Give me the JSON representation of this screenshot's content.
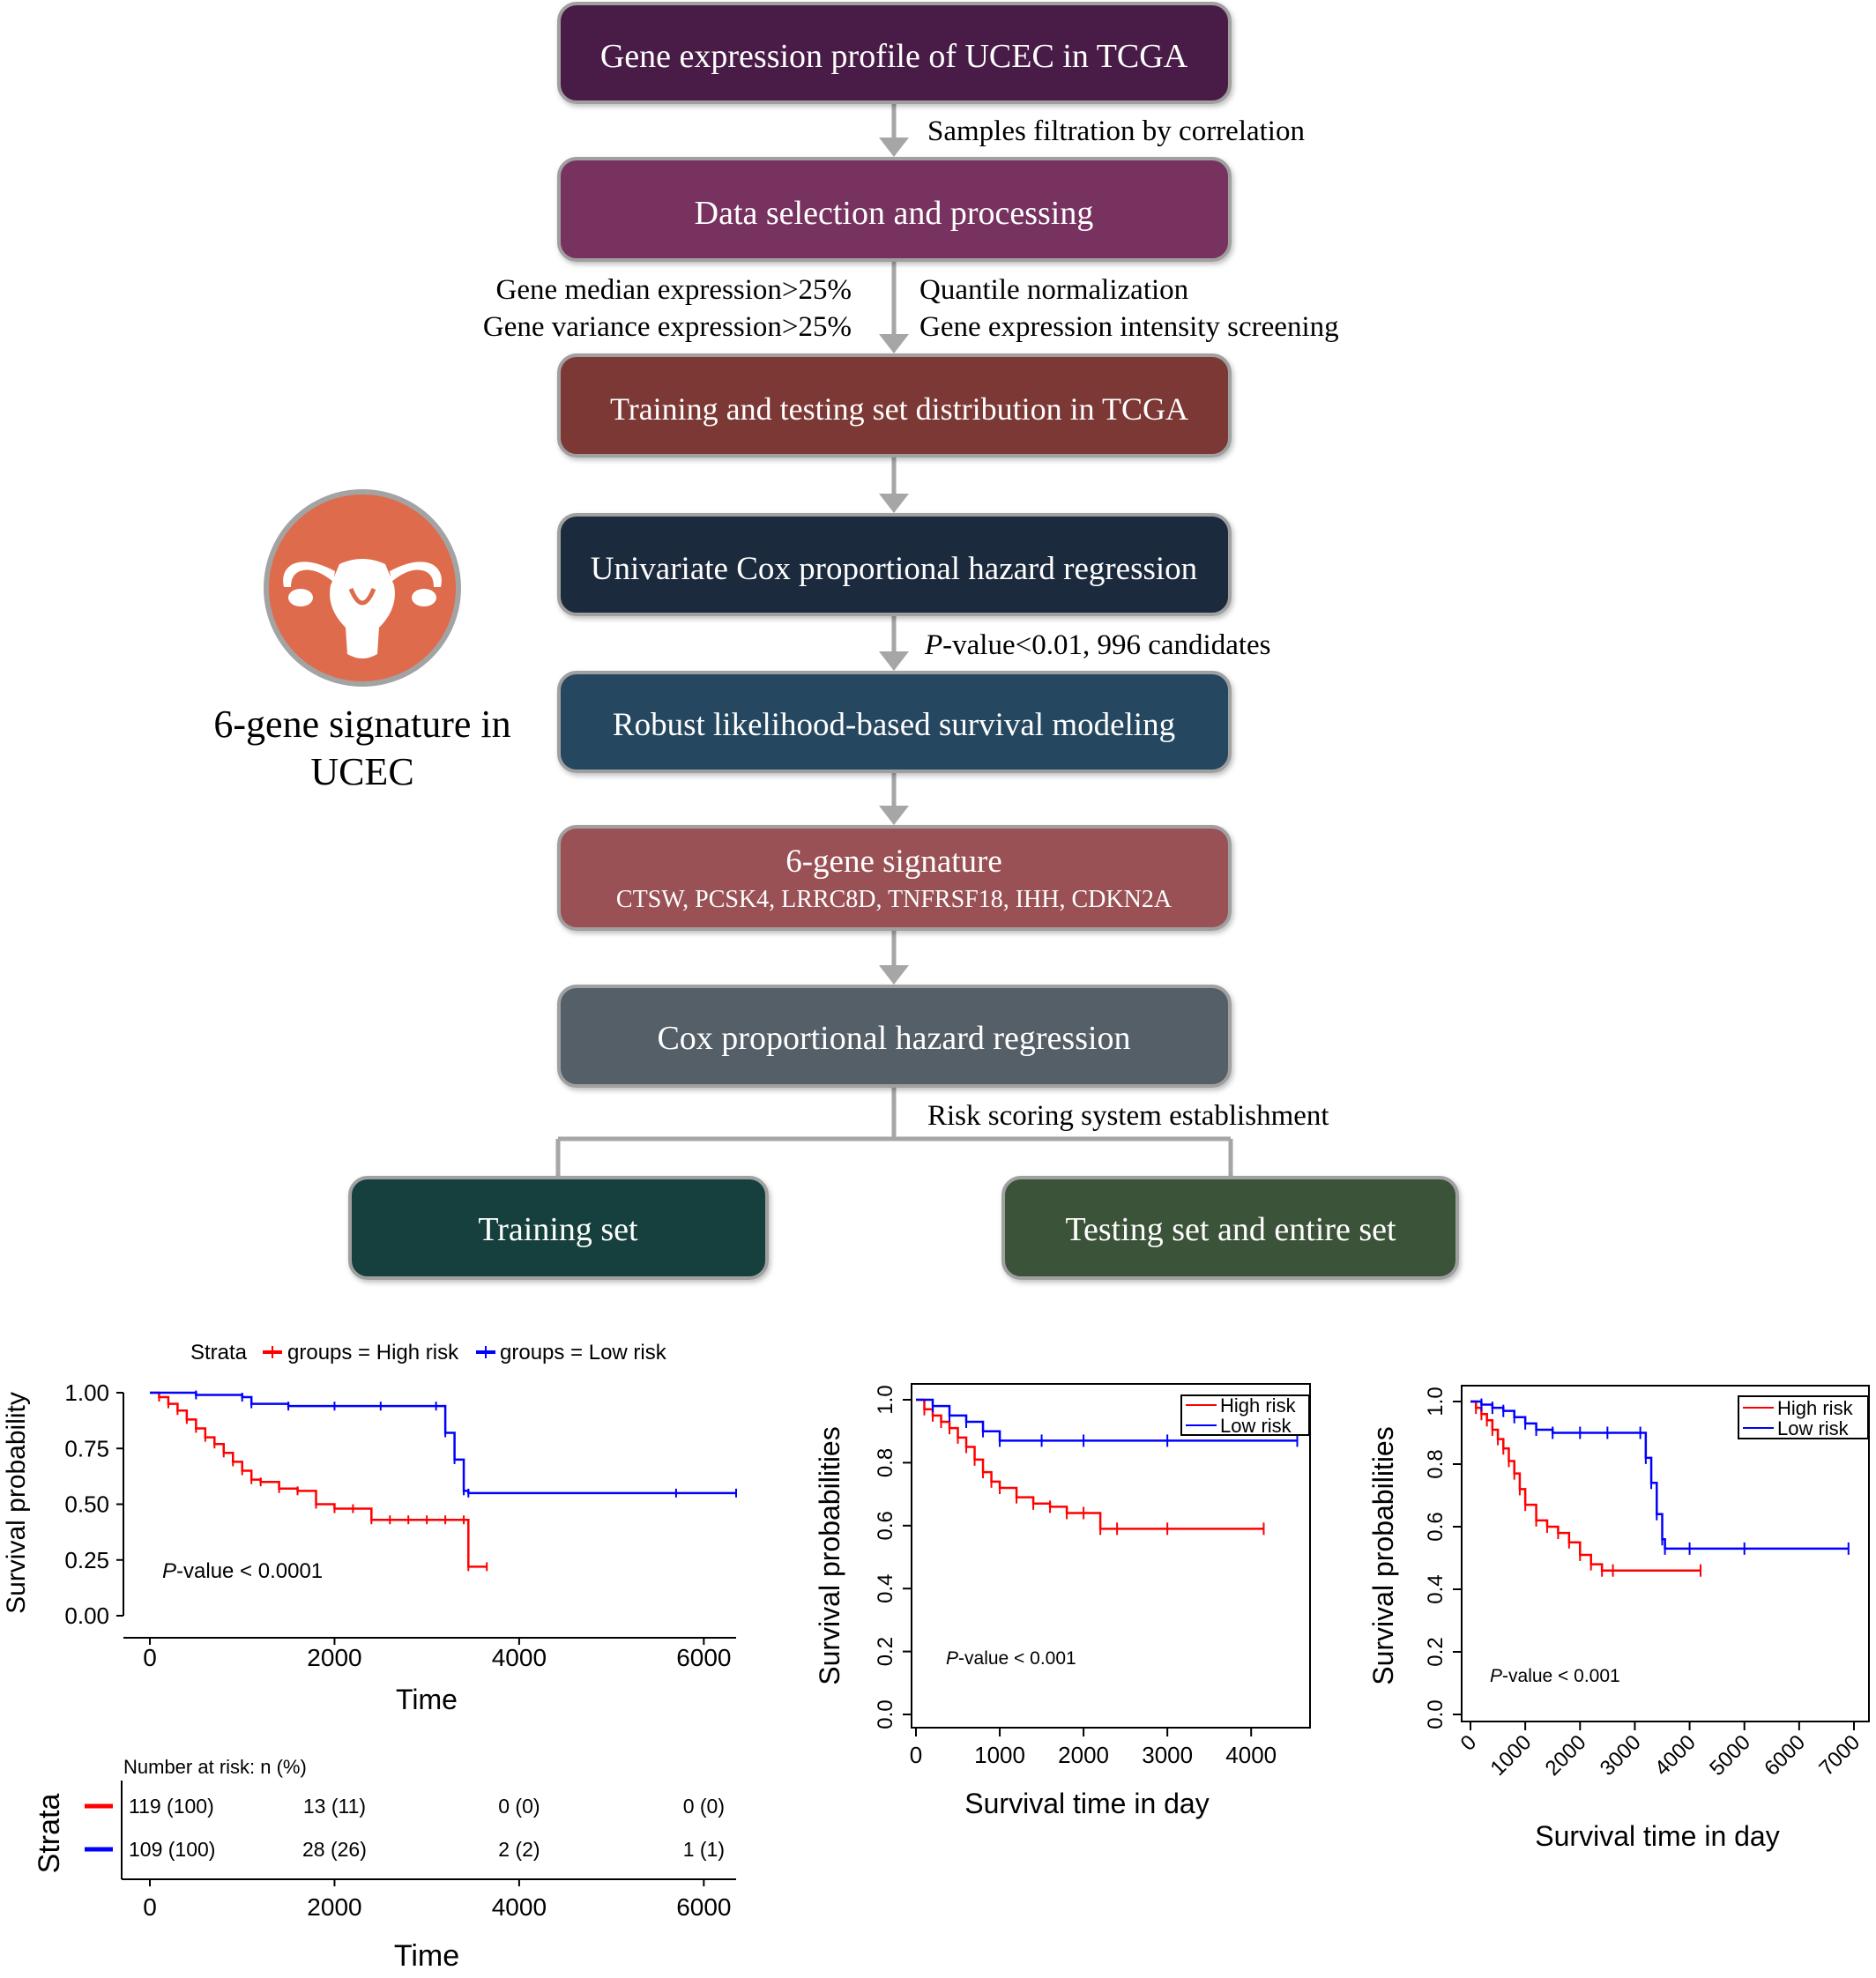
{
  "flowchart": {
    "boxes": [
      {
        "id": "profile",
        "label": "Gene expression profile of UCEC in TCGA",
        "color": "#4a1e47"
      },
      {
        "id": "selection",
        "label": "Data selection and processing",
        "color": "#77315f"
      },
      {
        "id": "distribution",
        "label": "Training and testing set distribution in TCGA",
        "color": "#7c3936"
      },
      {
        "id": "univariate",
        "label": "Univariate Cox proportional hazard regression",
        "color": "#1a2a3d"
      },
      {
        "id": "robust",
        "label": "Robust likelihood-based survival modeling",
        "color": "#274760"
      },
      {
        "id": "signature",
        "label": "6-gene signature",
        "sublabel": "CTSW, PCSK4, LRRC8D, TNFRSF18, IHH, CDKN2A",
        "color": "#9a5155"
      },
      {
        "id": "cox",
        "label": "Cox proportional hazard regression",
        "color": "#555e68"
      },
      {
        "id": "training",
        "label": "Training set",
        "color": "#123f3c"
      },
      {
        "id": "testing",
        "label": "Testing set and entire set",
        "color": "#3b5337"
      }
    ],
    "annotations": {
      "filtration": "Samples filtration by correlation",
      "median": "Gene median expression>25%",
      "variance": "Gene variance expression>25%",
      "quantile": "Quantile normalization",
      "intensity": "Gene expression intensity screening",
      "pvalue_italic": "P",
      "pvalue_rest": "-value<0.01, 996 candidates",
      "risk_scoring": "Risk scoring system establishment"
    },
    "side_title_line1": "6-gene signature in",
    "side_title_line2": "UCEC",
    "icon": "uterus-icon",
    "icon_circle_color": "#de6b4b",
    "arrow_color": "#a6a6a6"
  },
  "chart_data": [
    {
      "type": "line",
      "id": "km-training",
      "legend_title": "Strata",
      "series": [
        {
          "name": "groups = High risk",
          "color": "#ff0000",
          "x": [
            0,
            100,
            200,
            300,
            400,
            500,
            600,
            700,
            800,
            900,
            1000,
            1100,
            1200,
            1400,
            1600,
            1800,
            2000,
            2200,
            2400,
            2600,
            2800,
            3000,
            3200,
            3400,
            3450,
            3650
          ],
          "y": [
            1.0,
            0.98,
            0.95,
            0.92,
            0.88,
            0.84,
            0.8,
            0.77,
            0.73,
            0.69,
            0.65,
            0.61,
            0.6,
            0.57,
            0.56,
            0.5,
            0.48,
            0.48,
            0.43,
            0.43,
            0.43,
            0.43,
            0.43,
            0.43,
            0.22,
            0.22
          ]
        },
        {
          "name": "groups = Low risk",
          "color": "#0000ff",
          "x": [
            0,
            500,
            1000,
            1100,
            1500,
            2000,
            2500,
            3100,
            3200,
            3300,
            3400,
            3450,
            5700,
            6350
          ],
          "y": [
            1.0,
            0.99,
            0.98,
            0.95,
            0.94,
            0.94,
            0.94,
            0.94,
            0.82,
            0.7,
            0.56,
            0.55,
            0.55,
            0.55
          ]
        }
      ],
      "xlabel": "Time",
      "ylabel": "Survival probability",
      "xticks": [
        0,
        2000,
        4000,
        6000
      ],
      "yticks": [
        "0.00",
        "0.25",
        "0.50",
        "0.75",
        "1.00"
      ],
      "xlim": [
        0,
        6350
      ],
      "ylim": [
        0,
        1
      ],
      "annotation_italic": "P",
      "annotation_rest": "-value < 0.0001",
      "risk_table": {
        "title": "Number at risk: n (%)",
        "ylabel": "Strata",
        "xlabel": "Time",
        "xticks": [
          0,
          2000,
          4000,
          6000
        ],
        "rows": [
          {
            "color": "#ff0000",
            "values": [
              "119 (100)",
              "13 (11)",
              "0 (0)",
              "0 (0)"
            ]
          },
          {
            "color": "#0000ff",
            "values": [
              "109 (100)",
              "28 (26)",
              "2 (2)",
              "1 (1)"
            ]
          }
        ]
      }
    },
    {
      "type": "line",
      "id": "km-testing",
      "series": [
        {
          "name": "High risk",
          "color": "#ff0000",
          "x": [
            0,
            100,
            200,
            300,
            400,
            500,
            600,
            700,
            800,
            900,
            1000,
            1200,
            1400,
            1600,
            1800,
            2000,
            2200,
            2400,
            3000,
            4150
          ],
          "y": [
            1.0,
            0.97,
            0.95,
            0.93,
            0.91,
            0.88,
            0.85,
            0.81,
            0.77,
            0.74,
            0.72,
            0.69,
            0.67,
            0.66,
            0.64,
            0.64,
            0.59,
            0.59,
            0.59,
            0.59
          ]
        },
        {
          "name": "Low risk",
          "color": "#0000ff",
          "x": [
            0,
            200,
            400,
            600,
            800,
            1000,
            1500,
            2000,
            3000,
            4550
          ],
          "y": [
            1.0,
            0.98,
            0.95,
            0.93,
            0.9,
            0.87,
            0.87,
            0.87,
            0.87,
            0.87
          ]
        }
      ],
      "xlabel": "Survival time in day",
      "ylabel": "Survival probabilities",
      "xticks": [
        0,
        1000,
        2000,
        3000,
        4000
      ],
      "yticks": [
        "0.0",
        "0.2",
        "0.4",
        "0.6",
        "0.8",
        "1.0"
      ],
      "xlim": [
        0,
        4650
      ],
      "ylim": [
        0,
        1
      ],
      "annotation_italic": "P",
      "annotation_rest": "-value < 0.001",
      "legend_position": "top-right"
    },
    {
      "type": "line",
      "id": "km-entire",
      "series": [
        {
          "name": "High risk",
          "color": "#ff0000",
          "x": [
            0,
            100,
            200,
            300,
            400,
            500,
            600,
            700,
            800,
            900,
            1000,
            1200,
            1400,
            1600,
            1800,
            2000,
            2200,
            2400,
            2600,
            4200
          ],
          "y": [
            1.0,
            0.98,
            0.96,
            0.94,
            0.91,
            0.88,
            0.85,
            0.81,
            0.77,
            0.72,
            0.67,
            0.62,
            0.6,
            0.58,
            0.55,
            0.51,
            0.48,
            0.46,
            0.46,
            0.46
          ]
        },
        {
          "name": "Low risk",
          "color": "#0000ff",
          "x": [
            0,
            200,
            400,
            600,
            800,
            1000,
            1200,
            1500,
            2000,
            2500,
            3100,
            3200,
            3300,
            3400,
            3500,
            3550,
            4000,
            5000,
            6900
          ],
          "y": [
            1.0,
            0.99,
            0.98,
            0.97,
            0.95,
            0.93,
            0.91,
            0.9,
            0.9,
            0.9,
            0.9,
            0.82,
            0.74,
            0.64,
            0.56,
            0.53,
            0.53,
            0.53,
            0.53
          ]
        }
      ],
      "xlabel": "Survival time in day",
      "ylabel": "Survival probabilities",
      "xticks": [
        0,
        1000,
        2000,
        3000,
        4000,
        5000,
        6000,
        7000
      ],
      "yticks": [
        "0.0",
        "0.2",
        "0.4",
        "0.6",
        "0.8",
        "1.0"
      ],
      "xlim": [
        0,
        7000
      ],
      "ylim": [
        0,
        1
      ],
      "annotation_italic": "P",
      "annotation_rest": "-value < 0.001",
      "legend_position": "top-right"
    }
  ]
}
